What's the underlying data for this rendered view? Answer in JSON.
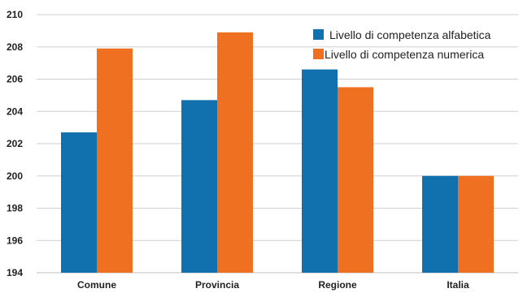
{
  "chart_data": {
    "type": "bar",
    "title": "",
    "xlabel": "",
    "ylabel": "",
    "categories": [
      "Comune",
      "Provincia",
      "Regione",
      "Italia"
    ],
    "series": [
      {
        "name": "Livello di competenza alfabetica",
        "color": "#1170ae",
        "values": [
          202.7,
          204.7,
          206.6,
          200.0
        ]
      },
      {
        "name": "Livello di competenza numerica",
        "color": "#f07022",
        "values": [
          207.9,
          208.9,
          205.5,
          200.0
        ]
      }
    ],
    "ylim": [
      194,
      210
    ],
    "yticks": [
      194,
      196,
      198,
      200,
      202,
      204,
      206,
      208,
      210
    ],
    "grid": true,
    "legend_position": "top-right"
  }
}
